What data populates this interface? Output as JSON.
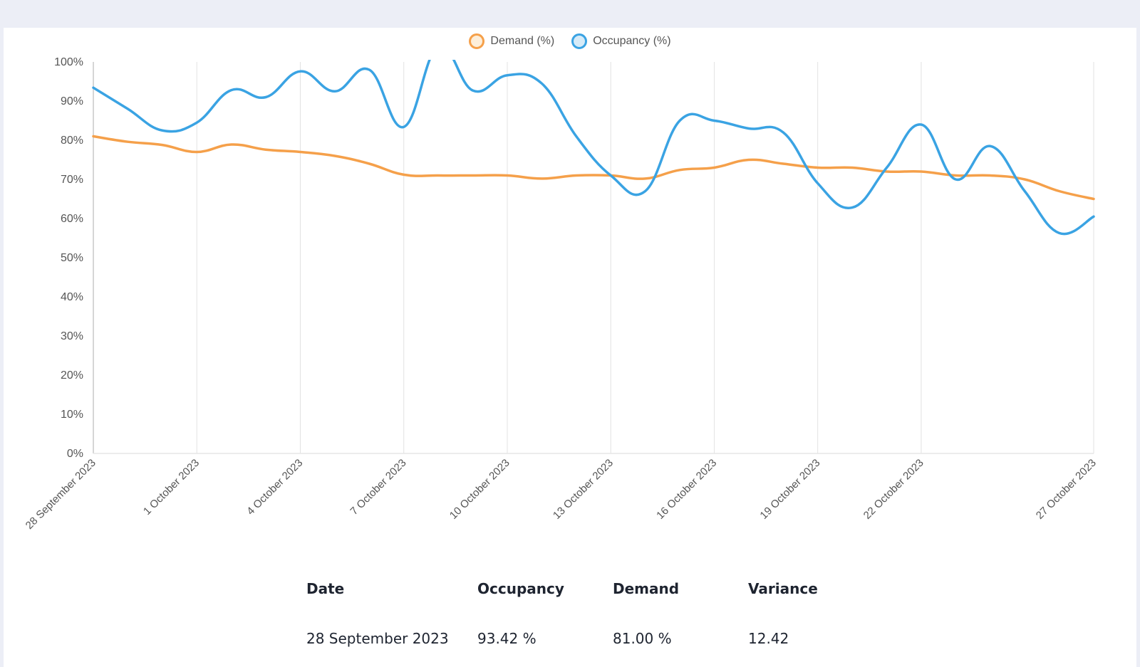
{
  "colors": {
    "demand": "#f5a04a",
    "occupancy": "#3aa3e3",
    "grid": "#e2e2e2",
    "axis_text": "#555555",
    "background": "#eceef6"
  },
  "legend": [
    {
      "label": "Demand (%)",
      "color": "#f5a04a",
      "fill": "#fdeed9"
    },
    {
      "label": "Occupancy (%)",
      "color": "#3aa3e3",
      "fill": "#d6ebf8"
    }
  ],
  "chart_data": {
    "type": "line",
    "title": "",
    "xlabel": "",
    "ylabel": "",
    "ylim": [
      0,
      100
    ],
    "yticks": [
      "0%",
      "10%",
      "20%",
      "30%",
      "40%",
      "50%",
      "60%",
      "70%",
      "80%",
      "90%",
      "100%"
    ],
    "x_tick_labels": [
      "28 September 2023",
      "1 October 2023",
      "4 October 2023",
      "7 October 2023",
      "10 October 2023",
      "13 October 2023",
      "16 October 2023",
      "19 October 2023",
      "22 October 2023",
      "27 October 2023"
    ],
    "x": [
      "2023-09-28",
      "2023-09-29",
      "2023-09-30",
      "2023-10-01",
      "2023-10-02",
      "2023-10-03",
      "2023-10-04",
      "2023-10-05",
      "2023-10-06",
      "2023-10-07",
      "2023-10-08",
      "2023-10-09",
      "2023-10-10",
      "2023-10-11",
      "2023-10-12",
      "2023-10-13",
      "2023-10-14",
      "2023-10-15",
      "2023-10-16",
      "2023-10-17",
      "2023-10-18",
      "2023-10-19",
      "2023-10-20",
      "2023-10-21",
      "2023-10-22",
      "2023-10-23",
      "2023-10-24",
      "2023-10-25",
      "2023-10-26",
      "2023-10-27"
    ],
    "grid": true,
    "legend_position": "top-center",
    "series": [
      {
        "name": "Demand (%)",
        "values": [
          81.0,
          79.6,
          78.8,
          77.0,
          78.9,
          77.6,
          77.0,
          76.0,
          74.0,
          71.2,
          71.0,
          71.0,
          71.0,
          70.2,
          71.0,
          71.0,
          70.2,
          72.4,
          73.0,
          75.0,
          74.0,
          73.0,
          73.0,
          72.0,
          72.0,
          71.0,
          71.0,
          70.0,
          67.0,
          65.0
        ]
      },
      {
        "name": "Occupancy (%)",
        "values": [
          93.42,
          88.0,
          82.5,
          84.5,
          92.8,
          91.0,
          97.6,
          92.5,
          98.0,
          83.4,
          104.0,
          92.7,
          96.6,
          94.5,
          81.0,
          71.0,
          67.0,
          85.0,
          85.0,
          83.0,
          82.0,
          69.0,
          62.8,
          73.0,
          84.0,
          70.0,
          78.5,
          67.0,
          56.3,
          60.5
        ]
      }
    ]
  },
  "table": {
    "headers": [
      "Date",
      "Occupancy",
      "Demand",
      "Variance"
    ],
    "rows": [
      [
        "28 September 2023",
        "93.42 %",
        "81.00 %",
        "12.42"
      ]
    ]
  }
}
